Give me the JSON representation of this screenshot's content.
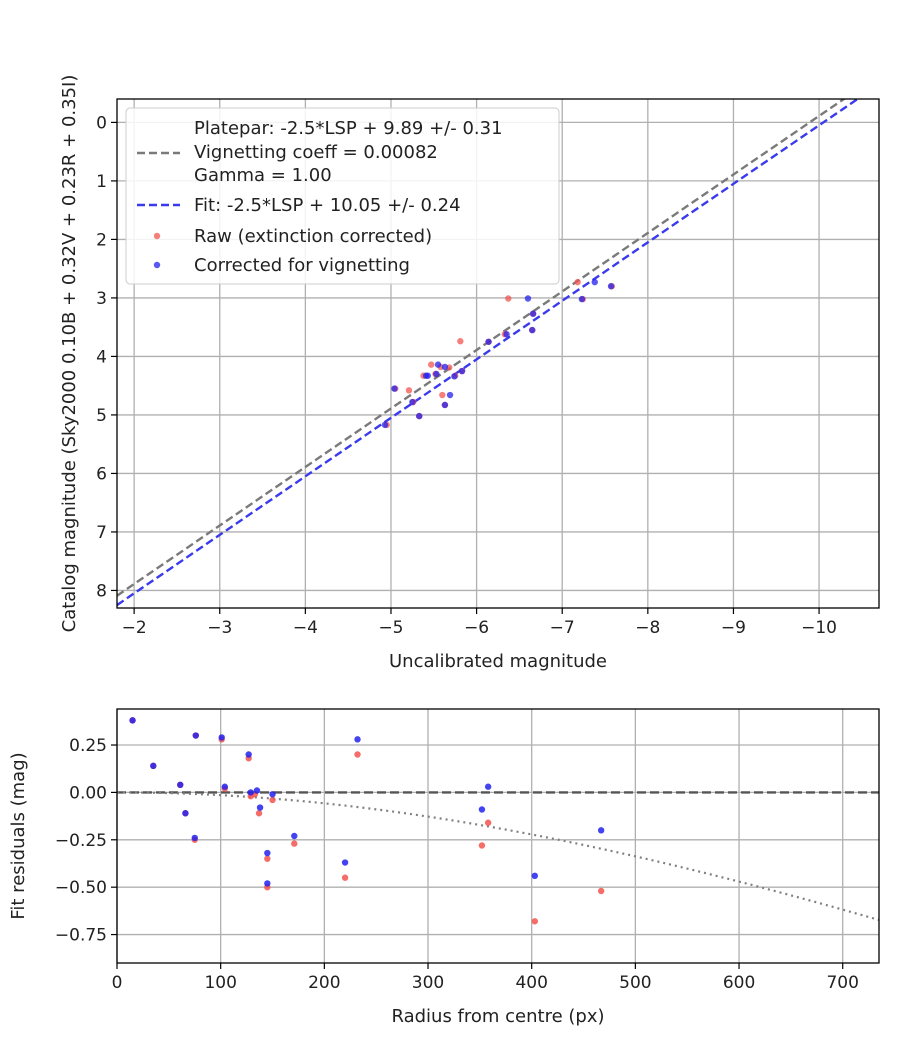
{
  "colors": {
    "raw": "#f2544f",
    "corrected": "#2222ee",
    "platepar_line": "#7a7a7a",
    "fit_line": "#3a3aee",
    "grid": "#b0b0b0",
    "zero_line": "#555555",
    "curve": "#808080"
  },
  "chart_data": [
    {
      "type": "scatter",
      "title": "",
      "xlabel": "Uncalibrated magnitude",
      "ylabel": "Catalog magnitude (Sky2000 0.10B + 0.32V + 0.23R + 0.35I)",
      "xlim": [
        -1.8,
        -10.7
      ],
      "ylim": [
        8.3,
        -0.4
      ],
      "x_inverted": true,
      "y_inverted": true,
      "grid": true,
      "xticks": [
        -2,
        -3,
        -4,
        -5,
        -6,
        -7,
        -8,
        -9,
        -10
      ],
      "xtick_labels": [
        "−2",
        "−3",
        "−4",
        "−5",
        "−6",
        "−7",
        "−8",
        "−9",
        "−10"
      ],
      "yticks": [
        0,
        1,
        2,
        3,
        4,
        5,
        6,
        7,
        8
      ],
      "ytick_labels": [
        "0",
        "1",
        "2",
        "3",
        "4",
        "5",
        "6",
        "7",
        "8"
      ],
      "legend_position": "upper-left",
      "legend": [
        {
          "label": "Platepar: -2.5*LSP + 9.89 +/- 0.31",
          "label2": "Vignetting coeff = 0.00082",
          "label3": "Gamma = 1.00",
          "kind": "dashed-line",
          "color": "#7a7a7a"
        },
        {
          "label": "Fit: -2.5*LSP + 10.05 +/- 0.24",
          "kind": "dashed-line",
          "color": "#3a3aee"
        },
        {
          "label": "Raw (extinction corrected)",
          "kind": "marker",
          "color": "#f2544f"
        },
        {
          "label": "Corrected for vignetting",
          "kind": "marker",
          "color": "#2222ee"
        }
      ],
      "lines": [
        {
          "name": "platepar",
          "slope": 1,
          "intercept": 9.89,
          "color": "#7a7a7a"
        },
        {
          "name": "fit",
          "slope": 1,
          "intercept": 10.05,
          "color": "#3a3aee"
        }
      ],
      "series": [
        {
          "name": "Raw (extinction corrected)",
          "color": "#f2544f",
          "points": [
            [
              -4.95,
              5.17
            ],
            [
              -5.05,
              4.55
            ],
            [
              -5.21,
              4.58
            ],
            [
              -5.26,
              4.78
            ],
            [
              -5.33,
              5.02
            ],
            [
              -5.38,
              4.33
            ],
            [
              -5.47,
              4.14
            ],
            [
              -5.52,
              4.3
            ],
            [
              -5.58,
              4.18
            ],
            [
              -5.6,
              4.66
            ],
            [
              -5.63,
              4.83
            ],
            [
              -5.68,
              4.19
            ],
            [
              -5.75,
              4.33
            ],
            [
              -5.81,
              3.74
            ],
            [
              -5.83,
              4.25
            ],
            [
              -6.14,
              3.75
            ],
            [
              -6.33,
              3.62
            ],
            [
              -6.37,
              3.01
            ],
            [
              -6.65,
              3.55
            ],
            [
              -6.66,
              3.27
            ],
            [
              -7.18,
              2.73
            ],
            [
              -7.24,
              3.02
            ],
            [
              -7.58,
              2.8
            ]
          ]
        },
        {
          "name": "Corrected for vignetting",
          "color": "#2222ee",
          "points": [
            [
              -4.93,
              5.17
            ],
            [
              -5.04,
              4.55
            ],
            [
              -5.25,
              4.78
            ],
            [
              -5.33,
              5.02
            ],
            [
              -5.41,
              4.33
            ],
            [
              -5.43,
              4.33
            ],
            [
              -5.53,
              4.3
            ],
            [
              -5.55,
              4.14
            ],
            [
              -5.63,
              4.18
            ],
            [
              -5.63,
              4.83
            ],
            [
              -5.69,
              4.66
            ],
            [
              -5.74,
              4.34
            ],
            [
              -5.83,
              4.25
            ],
            [
              -6.14,
              3.75
            ],
            [
              -6.35,
              3.62
            ],
            [
              -6.6,
              3.01
            ],
            [
              -6.65,
              3.55
            ],
            [
              -6.66,
              3.27
            ],
            [
              -7.23,
              3.02
            ],
            [
              -7.38,
              2.73
            ],
            [
              -7.57,
              2.8
            ]
          ]
        }
      ]
    },
    {
      "type": "scatter",
      "title": "",
      "xlabel": "Radius from centre (px)",
      "ylabel": "Fit residuals (mag)",
      "xlim": [
        0,
        735
      ],
      "ylim": [
        -0.9,
        0.44
      ],
      "grid": true,
      "xticks": [
        0,
        100,
        200,
        300,
        400,
        500,
        600,
        700
      ],
      "xtick_labels": [
        "0",
        "100",
        "200",
        "300",
        "400",
        "500",
        "600",
        "700"
      ],
      "yticks": [
        0.25,
        0,
        -0.25,
        -0.5,
        -0.75
      ],
      "ytick_labels": [
        "0.25",
        "0.00",
        "−0.25",
        "−0.50",
        "−0.75"
      ],
      "zero_line": {
        "y": 0,
        "style": "dashed",
        "color": "#555555"
      },
      "vignetting_curve": {
        "coeff": 0.00082,
        "gamma": 1.0,
        "style": "dotted",
        "color": "#808080"
      },
      "series": [
        {
          "name": "Raw (extinction corrected)",
          "color": "#f2544f",
          "points": [
            [
              15,
              0.38
            ],
            [
              35,
              0.14
            ],
            [
              61,
              0.04
            ],
            [
              66,
              -0.11
            ],
            [
              75,
              -0.25
            ],
            [
              76,
              0.3
            ],
            [
              101,
              0.28
            ],
            [
              104,
              0.02
            ],
            [
              127,
              0.18
            ],
            [
              129,
              -0.02
            ],
            [
              133,
              -0.01
            ],
            [
              137,
              -0.11
            ],
            [
              145,
              -0.35
            ],
            [
              145,
              -0.5
            ],
            [
              150,
              -0.04
            ],
            [
              171,
              -0.27
            ],
            [
              220,
              -0.45
            ],
            [
              232,
              0.2
            ],
            [
              352,
              -0.28
            ],
            [
              358,
              -0.16
            ],
            [
              403,
              -0.68
            ],
            [
              467,
              -0.52
            ]
          ]
        },
        {
          "name": "Corrected for vignetting",
          "color": "#2222ee",
          "points": [
            [
              15,
              0.38
            ],
            [
              35,
              0.14
            ],
            [
              61,
              0.04
            ],
            [
              66,
              -0.11
            ],
            [
              75,
              -0.24
            ],
            [
              76,
              0.3
            ],
            [
              101,
              0.29
            ],
            [
              104,
              0.03
            ],
            [
              127,
              0.2
            ],
            [
              129,
              0.0
            ],
            [
              135,
              0.01
            ],
            [
              138,
              -0.08
            ],
            [
              145,
              -0.32
            ],
            [
              145,
              -0.48
            ],
            [
              150,
              -0.01
            ],
            [
              171,
              -0.23
            ],
            [
              220,
              -0.37
            ],
            [
              232,
              0.28
            ],
            [
              352,
              -0.09
            ],
            [
              358,
              0.03
            ],
            [
              403,
              -0.44
            ],
            [
              467,
              -0.2
            ]
          ]
        }
      ]
    }
  ]
}
